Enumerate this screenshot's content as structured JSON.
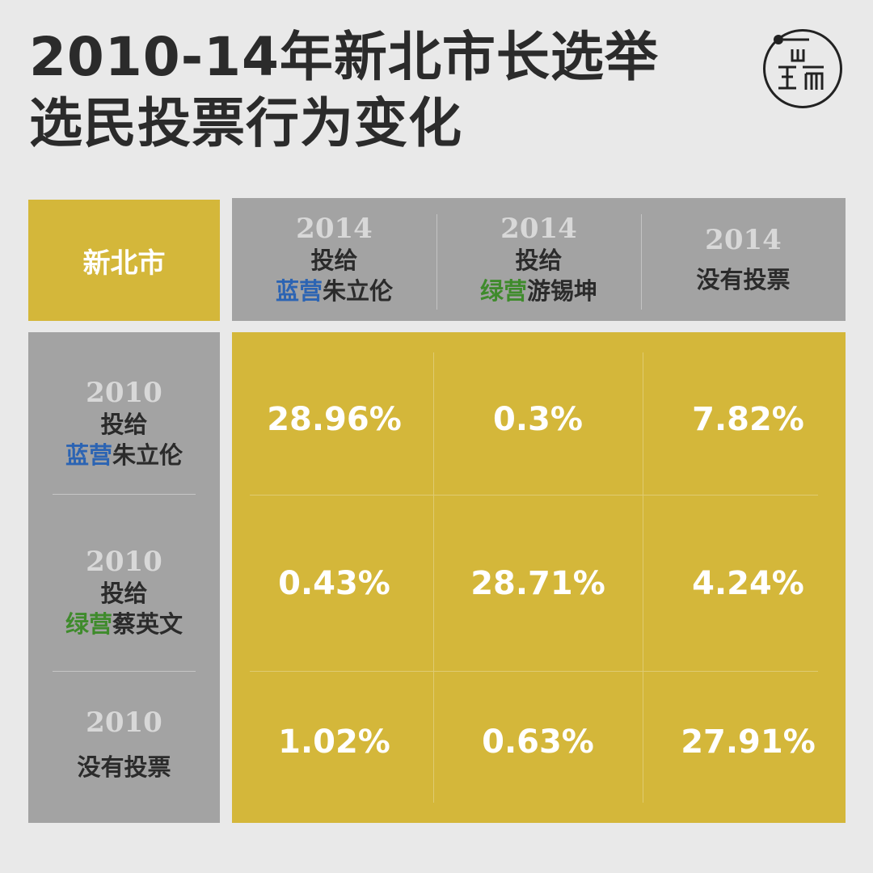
{
  "title": {
    "line1": "2010-14年新北市长选举",
    "line2": "选民投票行为变化"
  },
  "logo": {
    "text": "端",
    "icon": "logo-icon"
  },
  "colors": {
    "gold": "#d4b73a",
    "gray": "#a3a3a3",
    "blue_camp": "#2c64b3",
    "green_camp": "#3f8b2c"
  },
  "chart_data": {
    "type": "table",
    "corner_label": "新北市",
    "columns": [
      {
        "year": "2014",
        "line1": "投给",
        "camp": "蓝营",
        "camp_color": "blue",
        "candidate": "朱立伦"
      },
      {
        "year": "2014",
        "line1": "投给",
        "camp": "绿营",
        "camp_color": "green",
        "candidate": "游锡坤"
      },
      {
        "year": "2014",
        "line1": "",
        "camp": "",
        "camp_color": "",
        "candidate": "没有投票"
      }
    ],
    "rows": [
      {
        "year": "2010",
        "line1": "投给",
        "camp": "蓝营",
        "camp_color": "blue",
        "candidate": "朱立伦"
      },
      {
        "year": "2010",
        "line1": "投给",
        "camp": "绿营",
        "camp_color": "green",
        "candidate": "蔡英文"
      },
      {
        "year": "2010",
        "line1": "",
        "camp": "",
        "camp_color": "",
        "candidate": "没有投票"
      }
    ],
    "cells": [
      [
        "28.96%",
        "0.3%",
        "7.82%"
      ],
      [
        "0.43%",
        "28.71%",
        "4.24%"
      ],
      [
        "1.02%",
        "0.63%",
        "27.91%"
      ]
    ],
    "values_percent": [
      [
        28.96,
        0.3,
        7.82
      ],
      [
        0.43,
        28.71,
        4.24
      ],
      [
        1.02,
        0.63,
        27.91
      ]
    ]
  }
}
